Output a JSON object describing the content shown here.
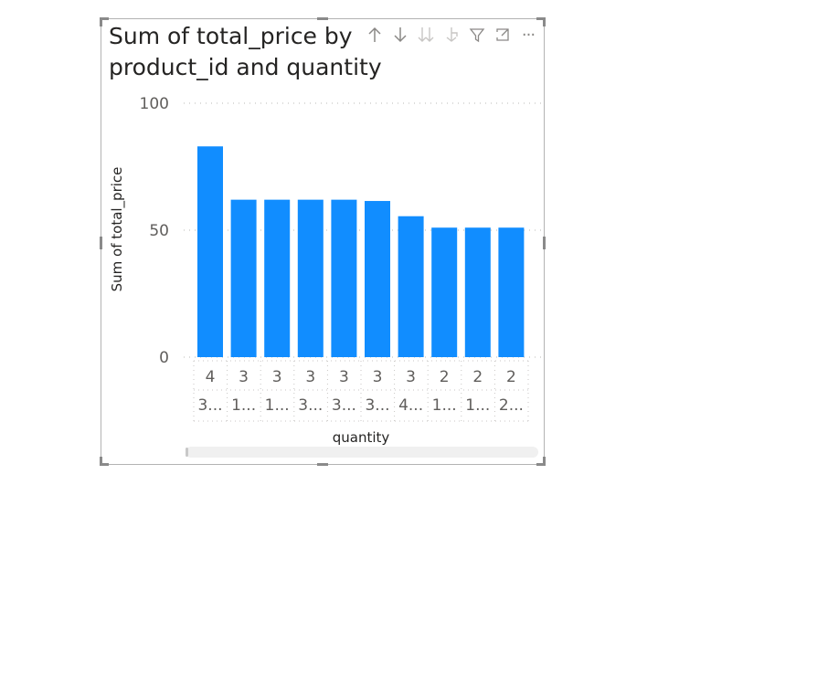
{
  "visual": {
    "title": "Sum of total_price by product_id and quantity",
    "toolbar": {
      "sort_asc_icon": "arrow-up-icon",
      "sort_desc_icon": "arrow-down-icon",
      "expand_all_icon": "double-arrow-down-icon",
      "expand_next_icon": "fork-arrow-down-icon",
      "filter_icon": "filter-icon",
      "focus_icon": "focus-mode-icon",
      "more_icon": "more-options-icon",
      "more_label": "···"
    }
  },
  "chart_data": {
    "type": "bar",
    "ylabel": "Sum of total_price",
    "xlabel": "quantity",
    "ylim": [
      0,
      100
    ],
    "yticks": [
      "0",
      "50",
      "100"
    ],
    "grid": true,
    "bar_color": "#118dff",
    "categories": [
      {
        "top": "4",
        "bottom": "3..."
      },
      {
        "top": "3",
        "bottom": "1..."
      },
      {
        "top": "3",
        "bottom": "1..."
      },
      {
        "top": "3",
        "bottom": "3..."
      },
      {
        "top": "3",
        "bottom": "3..."
      },
      {
        "top": "3",
        "bottom": "3..."
      },
      {
        "top": "3",
        "bottom": "4..."
      },
      {
        "top": "2",
        "bottom": "1..."
      },
      {
        "top": "2",
        "bottom": "1..."
      },
      {
        "top": "2",
        "bottom": "2..."
      }
    ],
    "values": [
      83,
      62,
      62,
      62,
      62,
      61.5,
      55.5,
      51,
      51,
      51
    ]
  }
}
